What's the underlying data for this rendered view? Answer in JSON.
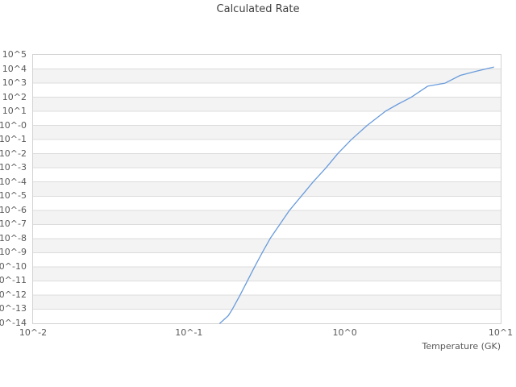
{
  "chart_data": {
    "type": "line",
    "title": "Calculated Rate",
    "xlabel": "Temperature (GK)",
    "ylabel": "",
    "x_scale": "log",
    "y_scale": "log",
    "x_range": [
      0.01,
      10
    ],
    "y_range": [
      1e-14,
      100000.0
    ],
    "x_tick_labels": [
      "10^-2",
      "10^-1",
      "10^0",
      "10^1"
    ],
    "x_tick_values": [
      0.01,
      0.1,
      1,
      10
    ],
    "y_tick_labels": [
      "10^5",
      "10^4",
      "10^3",
      "10^2",
      "10^1",
      "10^-0",
      "10^-1",
      "10^-2",
      "10^-3",
      "10^-4",
      "10^-5",
      "10^-6",
      "10^-7",
      "10^-8",
      "10^-9",
      "10^-10",
      "10^-11",
      "10^-12",
      "10^-13",
      "10^-14"
    ],
    "grid": "horizontal-only",
    "background_bands": "alternating-gray-white",
    "legend": "none",
    "series": [
      {
        "name": "calculated-rate",
        "color": "#699bdc",
        "points": [
          [
            0.158,
            1e-14
          ],
          [
            0.179,
            3.5e-14
          ],
          [
            0.19,
            1e-13
          ],
          [
            0.213,
            1e-12
          ],
          [
            0.237,
            1e-11
          ],
          [
            0.264,
            1e-10
          ],
          [
            0.295,
            1e-09
          ],
          [
            0.332,
            1e-08
          ],
          [
            0.383,
            1e-07
          ],
          [
            0.442,
            1e-06
          ],
          [
            0.526,
            1e-05
          ],
          [
            0.626,
            0.0001
          ],
          [
            0.757,
            0.001
          ],
          [
            0.9,
            0.01
          ],
          [
            1.1,
            0.1
          ],
          [
            1.39,
            1.0
          ],
          [
            1.82,
            10
          ],
          [
            2.2,
            33
          ],
          [
            2.67,
            100
          ],
          [
            3.4,
            600
          ],
          [
            4.4,
            1000
          ],
          [
            5.5,
            3500
          ],
          [
            7.0,
            7000
          ],
          [
            9.0,
            13500
          ]
        ]
      }
    ]
  },
  "style": {
    "band_color": "#f3f3f3",
    "grid_color": "#dcdcdc",
    "frame_color": "#d2d2d2",
    "tick_label_color": "#595959",
    "title_color": "#3f3f3f",
    "line_color": "#699bdc",
    "background_color": "#ffffff"
  }
}
